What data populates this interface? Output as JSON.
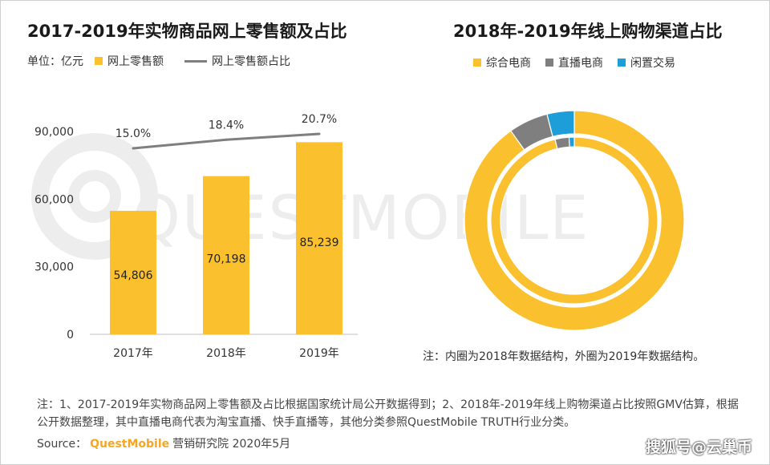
{
  "colors": {
    "bar": "#FBC02D",
    "line": "#7F7F7F",
    "comprehensive": "#FBC02D",
    "live": "#7F7F7F",
    "idle": "#1E9ED9",
    "watermark": "#EDEDED"
  },
  "left": {
    "title": "2017-2019年实物商品网上零售额及占比",
    "unit_label": "单位：亿元",
    "legend_bar": "网上零售额",
    "legend_line": "网上零售额占比"
  },
  "right": {
    "title": "2018年-2019年线上购物渠道占比",
    "legend": [
      "综合电商",
      "直播电商",
      "闲置交易"
    ],
    "note": "注：内圈为2018年数据结构，外圈为2019年数据结构。"
  },
  "watermark": "QUESTMOBILE",
  "footnote": "注：1、2017-2019年实物商品网上零售额及占比根据国家统计局公开数据得到；2、2018年-2019年线上购物渠道占比按照GMV估算，根据公开数据整理，其中直播电商代表为淘宝直播、快手直播等，其他分类参照QuestMobile TRUTH行业分类。",
  "source": {
    "label": "Source：",
    "brand": "QuestMobile",
    "suffix": "营销研究院 2020年5月"
  },
  "corner_watermark": "搜狐号@云巢币",
  "chart_data": [
    {
      "type": "bar",
      "title": "2017-2019年实物商品网上零售额及占比",
      "categories": [
        "2017年",
        "2018年",
        "2019年"
      ],
      "series": [
        {
          "name": "网上零售额",
          "type": "bar",
          "values": [
            54806,
            70198,
            85239
          ],
          "labels": [
            "54,806",
            "70,198",
            "85,239"
          ]
        },
        {
          "name": "网上零售额占比",
          "type": "line",
          "values": [
            15.0,
            18.4,
            20.7
          ],
          "labels": [
            "15.0%",
            "18.4%",
            "20.7%"
          ]
        }
      ],
      "ylim": [
        0,
        90000
      ],
      "yticks": [
        0,
        30000,
        60000,
        90000
      ],
      "ytick_labels": [
        "0",
        "30,000",
        "60,000",
        "90,000"
      ],
      "ylabel": "单位：亿元",
      "legend_position": "top-left",
      "grid": false
    },
    {
      "type": "pie",
      "title": "2018年-2019年线上购物渠道占比",
      "variant": "double-donut",
      "categories": [
        "综合电商",
        "直播电商",
        "闲置交易"
      ],
      "series": [
        {
          "name": "2018年",
          "ring": "inner",
          "values": [
            96.3,
            2.7,
            1.0
          ]
        },
        {
          "name": "2019年",
          "ring": "outer",
          "values": [
            90.2,
            5.8,
            4.0
          ]
        }
      ],
      "legend_position": "top"
    }
  ]
}
